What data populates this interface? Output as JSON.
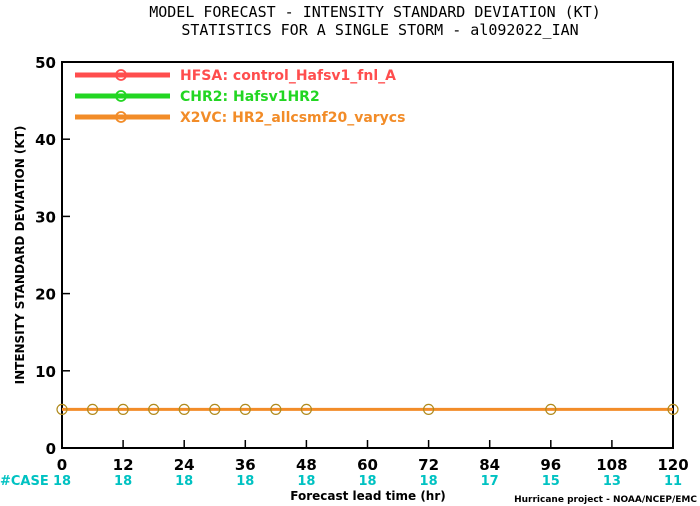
{
  "chart_data": {
    "type": "line",
    "title": "MODEL FORECAST - INTENSITY STANDARD DEVIATION (KT)",
    "subtitle": "STATISTICS FOR A SINGLE STORM - al092022_IAN",
    "xlabel": "Forecast lead time (hr)",
    "ylabel": "INTENSITY STANDARD DEVIATION (KT)",
    "xlim": [
      0,
      120
    ],
    "ylim": [
      0,
      50
    ],
    "x_ticks": [
      0,
      12,
      24,
      36,
      48,
      60,
      72,
      84,
      96,
      108,
      120
    ],
    "y_ticks": [
      0,
      10,
      20,
      30,
      40,
      50
    ],
    "case_label": "#CASE",
    "case_counts": [
      {
        "x": 0,
        "n": "18"
      },
      {
        "x": 12,
        "n": "18"
      },
      {
        "x": 24,
        "n": "18"
      },
      {
        "x": 36,
        "n": "18"
      },
      {
        "x": 48,
        "n": "18"
      },
      {
        "x": 60,
        "n": "18"
      },
      {
        "x": 72,
        "n": "18"
      },
      {
        "x": 84,
        "n": "17"
      },
      {
        "x": 96,
        "n": "15"
      },
      {
        "x": 108,
        "n": "13"
      },
      {
        "x": 120,
        "n": "11"
      }
    ],
    "legend_position": "top-left",
    "grid": false,
    "series": [
      {
        "name": "HFSA: control_Hafsv1_fnl_A",
        "color": "#ff4d4d",
        "x": [],
        "y": []
      },
      {
        "name": "CHR2: Hafsv1HR2",
        "color": "#22d622",
        "x": [],
        "y": []
      },
      {
        "name": "X2VC: HR2_allcsmf20_varycs",
        "color": "#f28c28",
        "x": [
          0,
          6,
          12,
          18,
          24,
          30,
          36,
          42,
          48,
          72,
          96,
          120
        ],
        "y": [
          5,
          5,
          5,
          5,
          5,
          5,
          5,
          5,
          5,
          5,
          5,
          5
        ]
      }
    ],
    "credit": "Hurricane project - NOAA/NCEP/EMC"
  }
}
